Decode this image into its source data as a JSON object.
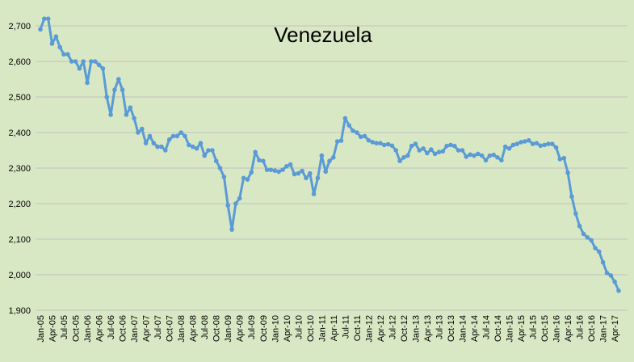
{
  "chart_data": {
    "type": "line",
    "title": "Venezuela",
    "xlabel": "",
    "ylabel": "",
    "ylim": [
      1900,
      2700
    ],
    "y_ticks": [
      1900,
      2000,
      2100,
      2200,
      2300,
      2400,
      2500,
      2600,
      2700
    ],
    "y_tick_labels": [
      "1,900",
      "2,000",
      "2,100",
      "2,200",
      "2,300",
      "2,400",
      "2,500",
      "2,600",
      "2,700"
    ],
    "x_tick_labels": [
      "Jan-05",
      "Apr-05",
      "Jul-05",
      "Oct-05",
      "Jan-06",
      "Apr-06",
      "Jul-06",
      "Oct-06",
      "Jan-07",
      "Apr-07",
      "Jul-07",
      "Oct-07",
      "Jan-08",
      "Apr-08",
      "Jul-08",
      "Oct-08",
      "Jan-09",
      "Apr-09",
      "Jul-09",
      "Oct-09",
      "Jan-10",
      "Apr-10",
      "Jul-10",
      "Oct-10",
      "Jan-11",
      "Apr-11",
      "Jul-11",
      "Oct-11",
      "Jan-12",
      "Apr-12",
      "Jul-12",
      "Oct-12",
      "Jan-13",
      "Apr-13",
      "Jul-13",
      "Oct-13",
      "Jan-14",
      "Apr-14",
      "Jul-14",
      "Oct-14",
      "Jan-15",
      "Apr-15",
      "Jul-15",
      "Oct-15",
      "Jan-16",
      "Apr-16",
      "Jul-16",
      "Oct-16",
      "Jan-17",
      "Apr-17"
    ],
    "grid": true,
    "legend": "none",
    "series": [
      {
        "color": "#5b9bd5",
        "start": "Jan-05",
        "frequency": "monthly",
        "values": [
          2690,
          2720,
          2720,
          2650,
          2670,
          2640,
          2620,
          2620,
          2600,
          2600,
          2580,
          2600,
          2540,
          2600,
          2600,
          2590,
          2580,
          2500,
          2450,
          2520,
          2550,
          2520,
          2450,
          2470,
          2440,
          2400,
          2410,
          2370,
          2390,
          2370,
          2360,
          2360,
          2350,
          2380,
          2390,
          2390,
          2400,
          2390,
          2365,
          2360,
          2355,
          2370,
          2335,
          2350,
          2350,
          2320,
          2300,
          2275,
          2195,
          2127,
          2200,
          2215,
          2272,
          2268,
          2288,
          2345,
          2322,
          2320,
          2295,
          2295,
          2293,
          2290,
          2295,
          2305,
          2310,
          2283,
          2285,
          2292,
          2272,
          2285,
          2227,
          2272,
          2335,
          2290,
          2320,
          2330,
          2375,
          2377,
          2440,
          2420,
          2405,
          2400,
          2388,
          2390,
          2378,
          2373,
          2370,
          2370,
          2365,
          2367,
          2363,
          2350,
          2320,
          2330,
          2335,
          2362,
          2368,
          2350,
          2355,
          2342,
          2352,
          2340,
          2345,
          2347,
          2362,
          2365,
          2362,
          2350,
          2350,
          2332,
          2338,
          2335,
          2340,
          2335,
          2322,
          2335,
          2337,
          2330,
          2322,
          2360,
          2355,
          2365,
          2368,
          2373,
          2375,
          2378,
          2368,
          2370,
          2363,
          2365,
          2368,
          2368,
          2358,
          2325,
          2328,
          2287,
          2220,
          2172,
          2137,
          2115,
          2105,
          2097,
          2075,
          2065,
          2035,
          2005,
          1998,
          1980,
          1955
        ]
      }
    ]
  }
}
